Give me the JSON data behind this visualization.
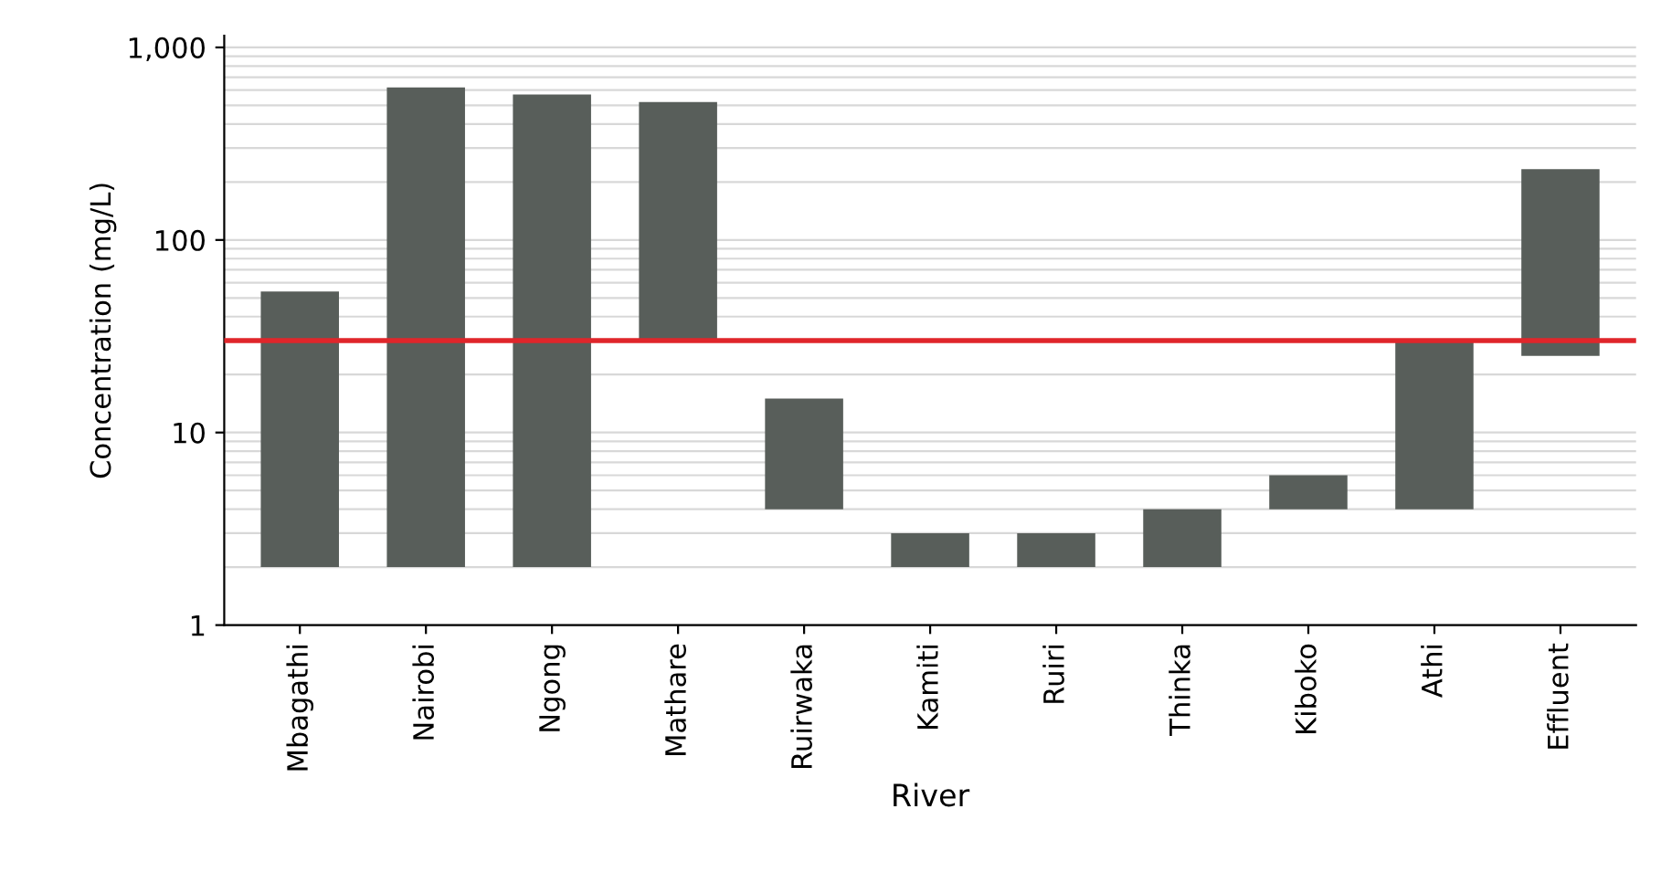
{
  "chart_data": {
    "type": "bar",
    "xlabel": "River",
    "ylabel": "Concentration (mg/L)",
    "categories": [
      "Mbagathi",
      "Nairobi",
      "Ngong",
      "Mathare",
      "Ruirwaka",
      "Kamiti",
      "Ruiri",
      "Thinka",
      "Kiboko",
      "Athi",
      "Effluent"
    ],
    "base": [
      2,
      2,
      2,
      30,
      4,
      2,
      2,
      2,
      4,
      4,
      25
    ],
    "values": [
      52,
      618,
      568,
      490,
      11,
      1,
      1,
      2,
      2,
      26,
      208
    ],
    "color": "#585e5a",
    "log": "y",
    "ylim": [
      1,
      1150
    ],
    "yticks": [
      1,
      10,
      100,
      {
        "value": 1000,
        "label": "1,000"
      }
    ],
    "grid": "y",
    "ref_lines": [
      {
        "axis": "y",
        "value": 30,
        "color": "#e0262b"
      }
    ]
  }
}
